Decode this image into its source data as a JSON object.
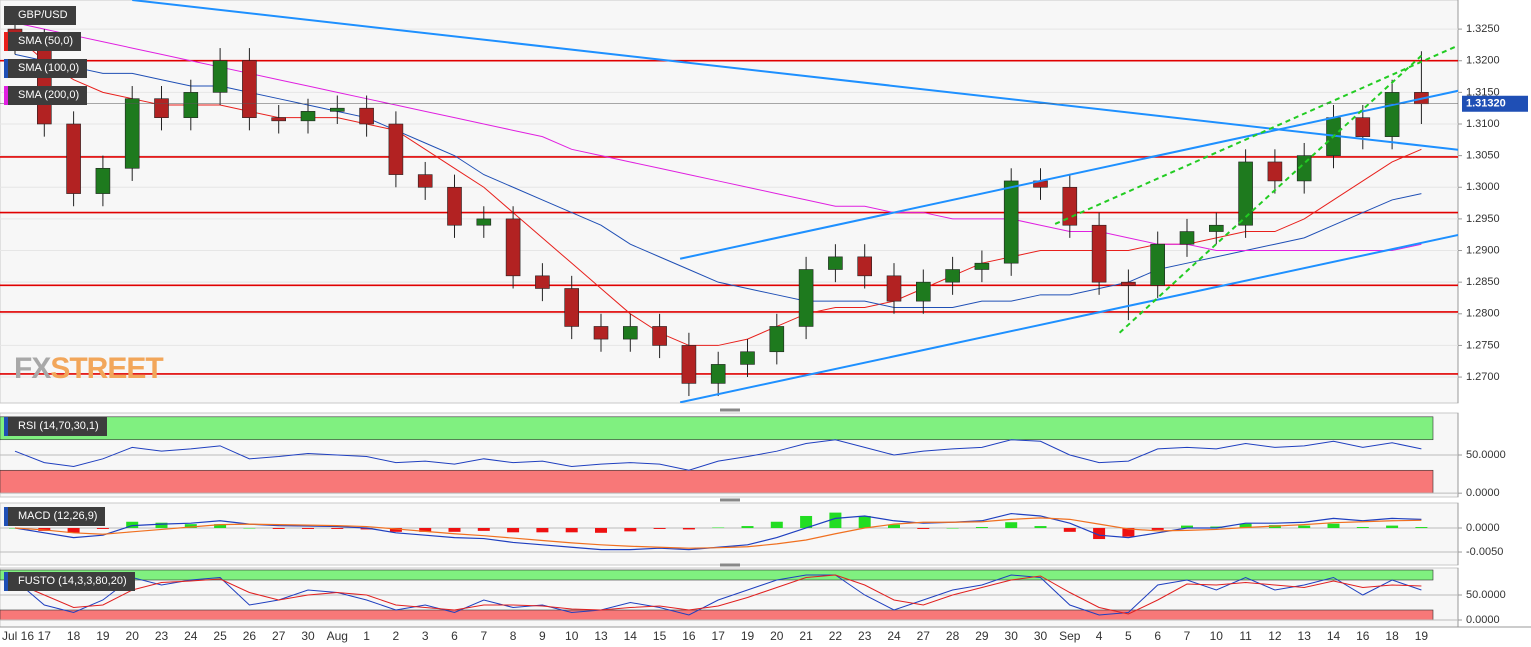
{
  "chart_data": [
    {
      "type": "candlestick",
      "title": "GBP/USD",
      "categories": [
        "Jul 16",
        "17",
        "18",
        "19",
        "20",
        "23",
        "24",
        "25",
        "26",
        "27",
        "30",
        "Aug",
        "1",
        "2",
        "3",
        "6",
        "7",
        "8",
        "9",
        "10",
        "13",
        "14",
        "15",
        "16",
        "17",
        "19",
        "20",
        "21",
        "22",
        "23",
        "24",
        "27",
        "28",
        "29",
        "30",
        "30",
        "Sep",
        "4",
        "5",
        "6",
        "7",
        "10",
        "11",
        "12",
        "13",
        "14",
        "16",
        "18",
        "19"
      ],
      "open": [
        1.325,
        1.323,
        1.31,
        1.299,
        1.303,
        1.314,
        1.311,
        1.315,
        1.32,
        1.311,
        1.3105,
        1.312,
        1.3125,
        1.31,
        1.302,
        1.3,
        1.294,
        1.295,
        1.286,
        1.284,
        1.278,
        1.276,
        1.278,
        1.275,
        1.269,
        1.272,
        1.274,
        1.278,
        1.287,
        1.289,
        1.286,
        1.282,
        1.285,
        1.287,
        1.288,
        1.301,
        1.3,
        1.294,
        1.285,
        1.2845,
        1.291,
        1.293,
        1.294,
        1.304,
        1.301,
        1.305,
        1.311,
        1.308,
        1.315
      ],
      "high": [
        1.327,
        1.325,
        1.312,
        1.305,
        1.316,
        1.316,
        1.317,
        1.322,
        1.322,
        1.313,
        1.314,
        1.3145,
        1.3145,
        1.312,
        1.304,
        1.302,
        1.297,
        1.297,
        1.288,
        1.286,
        1.28,
        1.28,
        1.28,
        1.277,
        1.274,
        1.276,
        1.28,
        1.289,
        1.291,
        1.291,
        1.288,
        1.287,
        1.289,
        1.29,
        1.303,
        1.303,
        1.302,
        1.296,
        1.287,
        1.293,
        1.295,
        1.296,
        1.306,
        1.306,
        1.307,
        1.313,
        1.313,
        1.317,
        1.3215
      ],
      "low": [
        1.321,
        1.308,
        1.297,
        1.297,
        1.301,
        1.309,
        1.309,
        1.313,
        1.309,
        1.3085,
        1.3085,
        1.31,
        1.308,
        1.3,
        1.298,
        1.292,
        1.292,
        1.284,
        1.282,
        1.276,
        1.274,
        1.274,
        1.273,
        1.267,
        1.267,
        1.27,
        1.272,
        1.276,
        1.285,
        1.284,
        1.28,
        1.28,
        1.283,
        1.285,
        1.286,
        1.298,
        1.292,
        1.283,
        1.279,
        1.2825,
        1.289,
        1.291,
        1.292,
        1.299,
        1.299,
        1.303,
        1.306,
        1.306,
        1.31
      ],
      "close": [
        1.323,
        1.31,
        1.299,
        1.303,
        1.314,
        1.311,
        1.315,
        1.32,
        1.311,
        1.3105,
        1.312,
        1.3125,
        1.31,
        1.302,
        1.3,
        1.294,
        1.295,
        1.286,
        1.284,
        1.278,
        1.276,
        1.278,
        1.275,
        1.269,
        1.272,
        1.274,
        1.278,
        1.287,
        1.289,
        1.286,
        1.282,
        1.285,
        1.287,
        1.288,
        1.301,
        1.3,
        1.294,
        1.285,
        1.2845,
        1.291,
        1.293,
        1.294,
        1.304,
        1.301,
        1.305,
        1.311,
        1.308,
        1.315,
        1.3132
      ],
      "up_color": "#1e7a1e",
      "down_color": "#b22222",
      "series": [
        {
          "name": "SMA (50,0)",
          "color": "#e8201c",
          "values": [
            1.324,
            1.32,
            1.317,
            1.315,
            1.314,
            1.313,
            1.313,
            1.313,
            1.312,
            1.311,
            1.311,
            1.311,
            1.31,
            1.309,
            1.306,
            1.303,
            1.3,
            1.296,
            1.292,
            1.288,
            1.284,
            1.28,
            1.277,
            1.275,
            1.275,
            1.276,
            1.278,
            1.28,
            1.281,
            1.281,
            1.282,
            1.284,
            1.286,
            1.288,
            1.289,
            1.29,
            1.29,
            1.29,
            1.29,
            1.291,
            1.291,
            1.292,
            1.293,
            1.293,
            1.295,
            1.298,
            1.301,
            1.304,
            1.306
          ]
        },
        {
          "name": "SMA (100,0)",
          "color": "#1f4fb5",
          "values": [
            1.321,
            1.32,
            1.319,
            1.318,
            1.318,
            1.317,
            1.316,
            1.316,
            1.315,
            1.314,
            1.313,
            1.312,
            1.311,
            1.309,
            1.307,
            1.305,
            1.302,
            1.3,
            1.298,
            1.296,
            1.294,
            1.291,
            1.289,
            1.287,
            1.285,
            1.284,
            1.283,
            1.282,
            1.282,
            1.282,
            1.281,
            1.281,
            1.281,
            1.282,
            1.282,
            1.283,
            1.283,
            1.284,
            1.285,
            1.287,
            1.288,
            1.289,
            1.29,
            1.291,
            1.292,
            1.294,
            1.296,
            1.298,
            1.299
          ]
        },
        {
          "name": "SMA (200,0)",
          "color": "#e020e0",
          "values": [
            1.326,
            1.325,
            1.324,
            1.323,
            1.322,
            1.321,
            1.32,
            1.319,
            1.318,
            1.317,
            1.316,
            1.315,
            1.314,
            1.313,
            1.312,
            1.311,
            1.31,
            1.309,
            1.308,
            1.306,
            1.305,
            1.304,
            1.303,
            1.302,
            1.301,
            1.3,
            1.299,
            1.298,
            1.297,
            1.297,
            1.296,
            1.296,
            1.295,
            1.295,
            1.295,
            1.294,
            1.293,
            1.293,
            1.292,
            1.291,
            1.291,
            1.29,
            1.29,
            1.29,
            1.29,
            1.29,
            1.29,
            1.29,
            1.291
          ]
        }
      ],
      "levels": {
        "color": "#e00000",
        "values": [
          1.32,
          1.3048,
          1.296,
          1.2845,
          1.2803,
          1.2705
        ]
      },
      "trendlines": [
        {
          "color": "#1e90ff",
          "x": [
            4,
            52
          ],
          "y": [
            1.3296,
            1.3045
          ]
        },
        {
          "color": "#1e90ff",
          "x": [
            22.7,
            49.3
          ],
          "y": [
            1.2887,
            1.3153
          ]
        },
        {
          "color": "#1e90ff",
          "x": [
            22.7,
            49.3
          ],
          "y": [
            1.266,
            1.2925
          ]
        },
        {
          "color": "#22cc22",
          "dash": true,
          "x": [
            35.5,
            49.3
          ],
          "y": [
            1.2942,
            1.3225
          ]
        },
        {
          "color": "#22cc22",
          "dash": true,
          "x": [
            37.7,
            48
          ],
          "y": [
            1.277,
            1.3208
          ]
        }
      ],
      "last_price": {
        "value": 1.3132,
        "label": "1.31320"
      },
      "watermark": [
        "FX",
        "STREET"
      ],
      "ylim": [
        1.2659,
        1.3296
      ],
      "yticks": [
        {
          "value": 1.27,
          "label": "1.2700"
        },
        {
          "value": 1.275,
          "label": "1.2750"
        },
        {
          "value": 1.28,
          "label": "1.2800"
        },
        {
          "value": 1.285,
          "label": "1.2850"
        },
        {
          "value": 1.29,
          "label": "1.2900"
        },
        {
          "value": 1.295,
          "label": "1.2950"
        },
        {
          "value": 1.3,
          "label": "1.3000"
        },
        {
          "value": 1.305,
          "label": "1.3050"
        },
        {
          "value": 1.31,
          "label": "1.3100"
        },
        {
          "value": 1.315,
          "label": "1.3150"
        },
        {
          "value": 1.32,
          "label": "1.3200"
        },
        {
          "value": 1.325,
          "label": "1.3250"
        }
      ]
    },
    {
      "type": "line",
      "title": "RSI (14,70,30,1)",
      "series": [
        {
          "color": "#1f3fbf",
          "values": [
            55,
            40,
            35,
            45,
            60,
            55,
            58,
            62,
            45,
            48,
            52,
            50,
            48,
            40,
            42,
            38,
            45,
            40,
            42,
            35,
            38,
            40,
            38,
            30,
            42,
            48,
            55,
            65,
            70,
            60,
            50,
            55,
            58,
            60,
            70,
            68,
            50,
            40,
            42,
            58,
            60,
            58,
            65,
            60,
            62,
            68,
            60,
            66,
            58
          ]
        }
      ],
      "bands": [
        {
          "range": [
            70,
            100
          ],
          "color": "#80f080"
        },
        {
          "range": [
            0,
            30
          ],
          "color": "#f87878"
        }
      ],
      "ylim": [
        -5,
        105
      ],
      "yticks": [
        {
          "value": 0,
          "label": "0.0000"
        },
        {
          "value": 50,
          "label": "50.0000"
        }
      ]
    },
    {
      "type": "macd",
      "title": "MACD (12,26,9)",
      "series": [
        {
          "color": "#1f3fbf",
          "values": [
            0.0,
            -0.001,
            -0.002,
            -0.0015,
            0.0005,
            0.0008,
            0.001,
            0.0015,
            0.0008,
            0.0005,
            0.0004,
            0.0003,
            0.0,
            -0.001,
            -0.0015,
            -0.002,
            -0.0022,
            -0.003,
            -0.0035,
            -0.004,
            -0.0045,
            -0.0045,
            -0.0042,
            -0.0045,
            -0.004,
            -0.0035,
            -0.002,
            0.0,
            0.002,
            0.0025,
            0.0015,
            0.001,
            0.0012,
            0.0015,
            0.003,
            0.0025,
            0.001,
            -0.0015,
            -0.002,
            -0.001,
            0.0,
            0.0,
            0.001,
            0.001,
            0.0012,
            0.002,
            0.0015,
            0.002,
            0.0018
          ]
        },
        {
          "color": "#f07020",
          "values": [
            0.0,
            -0.0004,
            -0.001,
            -0.0013,
            -0.0008,
            -0.0003,
            0.0002,
            0.0007,
            0.0008,
            0.0007,
            0.0006,
            0.0005,
            0.0003,
            -0.0002,
            -0.0007,
            -0.0012,
            -0.0016,
            -0.0021,
            -0.0026,
            -0.0031,
            -0.0035,
            -0.0038,
            -0.004,
            -0.0042,
            -0.0041,
            -0.0039,
            -0.0033,
            -0.0025,
            -0.0012,
            0.0,
            0.0008,
            0.0012,
            0.0012,
            0.0013,
            0.0018,
            0.0021,
            0.0018,
            0.0008,
            -0.0002,
            -0.0006,
            -0.0005,
            -0.0003,
            0.0001,
            0.0004,
            0.0007,
            0.0011,
            0.0013,
            0.0015,
            0.0016
          ]
        }
      ],
      "histogram": {
        "up_color": "#22dd22",
        "down_color": "#ee1111",
        "values": [
          0,
          -0.0006,
          -0.001,
          -0.0002,
          0.0013,
          0.0011,
          0.0008,
          0.0008,
          0.0,
          -0.0002,
          -0.0002,
          -0.0002,
          -0.0003,
          -0.0008,
          -0.0008,
          -0.0008,
          -0.0006,
          -0.0009,
          -0.0009,
          -0.0009,
          -0.001,
          -0.0007,
          -0.0002,
          -0.0003,
          0.0001,
          0.0004,
          0.0013,
          0.0025,
          0.0032,
          0.0025,
          0.0007,
          -0.0002,
          0.0,
          0.0002,
          0.0012,
          0.0004,
          -0.0008,
          -0.0023,
          -0.0018,
          -0.0004,
          0.0005,
          0.0003,
          0.0009,
          0.0006,
          0.0005,
          0.0009,
          0.0002,
          0.0005,
          0.0002
        ]
      },
      "ylim": [
        -0.0077,
        0.0052
      ],
      "yticks": [
        {
          "value": 0,
          "label": "0.0000"
        },
        {
          "value": -0.005,
          "label": "-0.0050"
        }
      ]
    },
    {
      "type": "line",
      "title": "FUSTO (14,3,3,80,20)",
      "series": [
        {
          "color": "#1f3fbf",
          "values": [
            80,
            30,
            15,
            40,
            85,
            70,
            80,
            85,
            30,
            40,
            60,
            55,
            40,
            20,
            30,
            15,
            40,
            25,
            30,
            15,
            20,
            35,
            25,
            10,
            40,
            60,
            80,
            90,
            90,
            50,
            20,
            40,
            60,
            70,
            90,
            85,
            30,
            10,
            15,
            70,
            80,
            60,
            85,
            60,
            70,
            85,
            50,
            80,
            60
          ]
        },
        {
          "color": "#e02020",
          "values": [
            75,
            50,
            25,
            30,
            60,
            75,
            78,
            82,
            55,
            40,
            50,
            55,
            50,
            30,
            25,
            20,
            30,
            30,
            28,
            22,
            20,
            25,
            28,
            20,
            28,
            45,
            65,
            85,
            90,
            70,
            40,
            30,
            50,
            65,
            80,
            88,
            55,
            25,
            12,
            40,
            72,
            70,
            75,
            70,
            65,
            78,
            65,
            70,
            68
          ]
        }
      ],
      "bands": [
        {
          "range": [
            80,
            100
          ],
          "color": "#80f080"
        },
        {
          "range": [
            0,
            20
          ],
          "color": "#f87878"
        }
      ],
      "ylim": [
        -14,
        104
      ],
      "yticks": [
        {
          "value": 0,
          "label": "0.0000"
        },
        {
          "value": 50,
          "label": "50.0000"
        }
      ]
    }
  ]
}
